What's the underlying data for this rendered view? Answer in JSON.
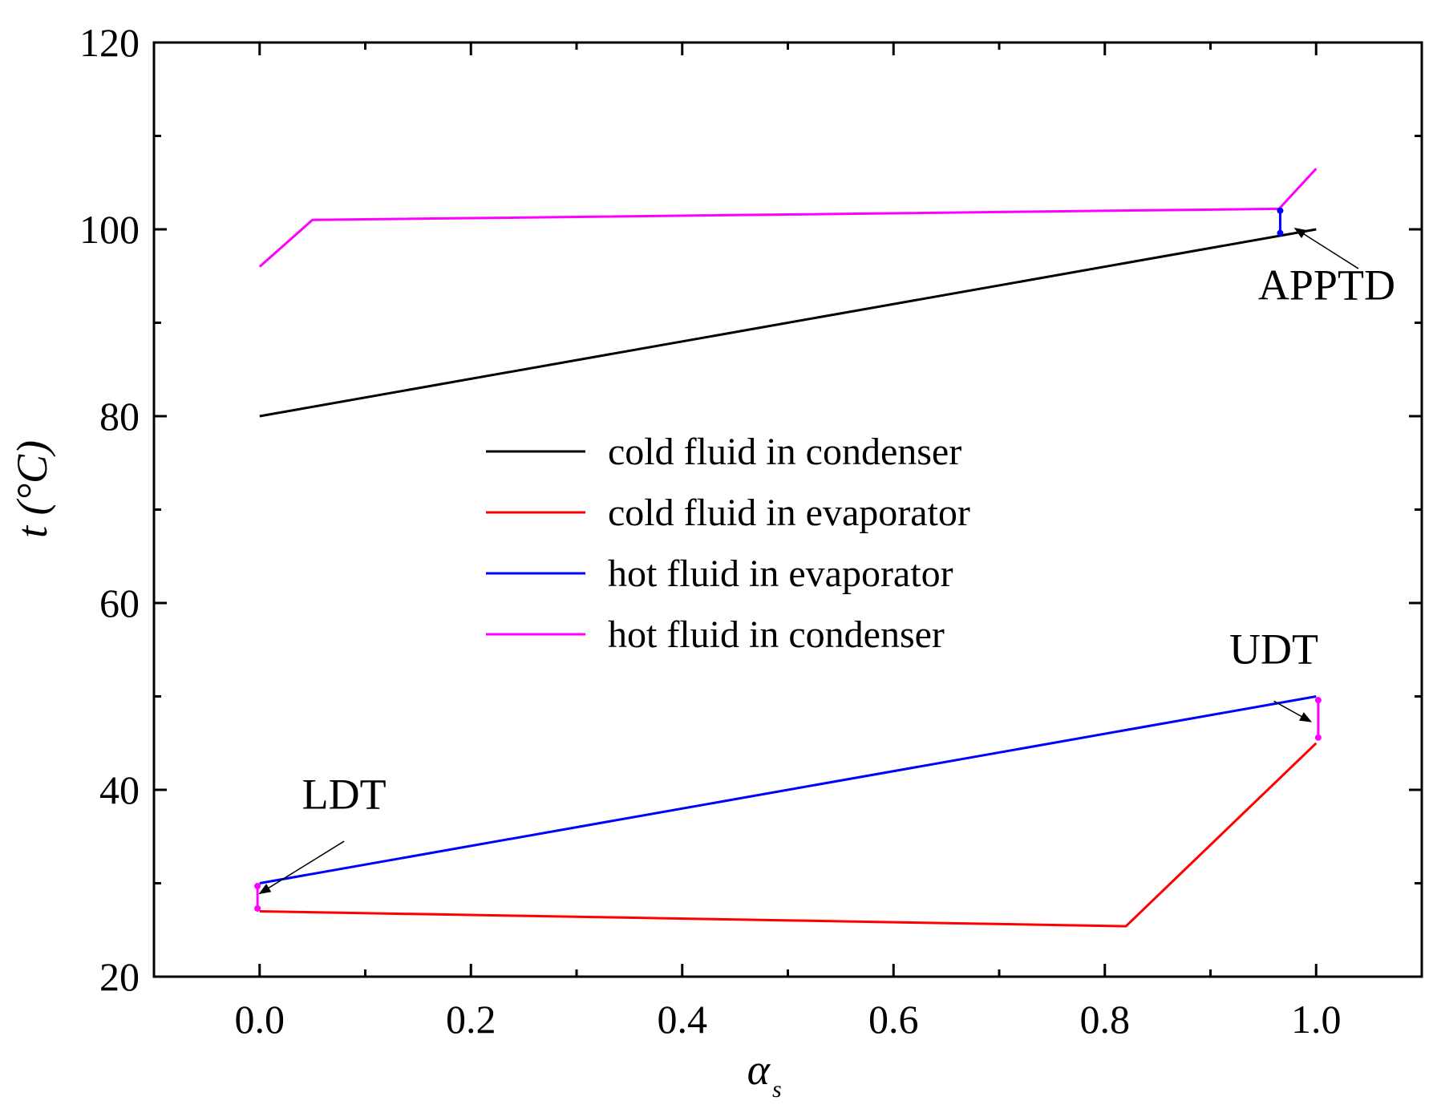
{
  "chart_data": {
    "type": "line",
    "xlabel": "α",
    "xlabel_sub": "s",
    "ylabel": "t (°C)",
    "xlim": [
      -0.1,
      1.1
    ],
    "ylim": [
      20,
      120
    ],
    "xticks": [
      0.0,
      0.2,
      0.4,
      0.6,
      0.8,
      1.0
    ],
    "xtick_labels": [
      "0.0",
      "0.2",
      "0.4",
      "0.6",
      "0.8",
      "1.0"
    ],
    "yticks": [
      20,
      40,
      60,
      80,
      100,
      120
    ],
    "ytick_labels": [
      "20",
      "40",
      "60",
      "80",
      "100",
      "120"
    ],
    "x_minor_step": 0.1,
    "y_minor_step": 10,
    "grid": false,
    "legend_position": "center",
    "series": [
      {
        "name": "cold fluid in condenser",
        "color": "#000000",
        "points": [
          [
            0.0,
            80.0
          ],
          [
            1.0,
            100.0
          ]
        ]
      },
      {
        "name": "cold fluid in evaporator",
        "color": "#ff0000",
        "points": [
          [
            0.0,
            27.0
          ],
          [
            0.82,
            25.4
          ],
          [
            1.0,
            45.0
          ]
        ]
      },
      {
        "name": "hot fluid in evaporator",
        "color": "#0000ff",
        "points": [
          [
            0.0,
            30.0
          ],
          [
            1.0,
            50.0
          ]
        ]
      },
      {
        "name": "hot fluid in condenser",
        "color": "#ff00ff",
        "points": [
          [
            0.0,
            96.0
          ],
          [
            0.05,
            101.0
          ],
          [
            0.965,
            102.2
          ],
          [
            1.0,
            106.5
          ]
        ]
      }
    ],
    "difference_markers": [
      {
        "x": -0.002,
        "y1": 27.3,
        "y2": 29.7,
        "color": "#ff00ff"
      },
      {
        "x": 1.002,
        "y1": 45.6,
        "y2": 49.6,
        "color": "#ff00ff"
      },
      {
        "x": 0.966,
        "y1": 99.6,
        "y2": 102.0,
        "color": "#0000ff"
      }
    ],
    "annotations": [
      {
        "text": "APPTD",
        "label_at": [
          1.01,
          92.5
        ],
        "arrow_from": [
          1.04,
          95.8
        ],
        "arrow_to": [
          0.98,
          100.1
        ]
      },
      {
        "text": "UDT",
        "label_at": [
          0.96,
          53.5
        ],
        "arrow_from": [
          0.96,
          49.5
        ],
        "arrow_to": [
          0.995,
          47.3
        ]
      },
      {
        "text": "LDT",
        "label_at": [
          0.08,
          38.0
        ],
        "arrow_from": [
          0.08,
          34.5
        ],
        "arrow_to": [
          0.0,
          28.9
        ]
      }
    ]
  }
}
